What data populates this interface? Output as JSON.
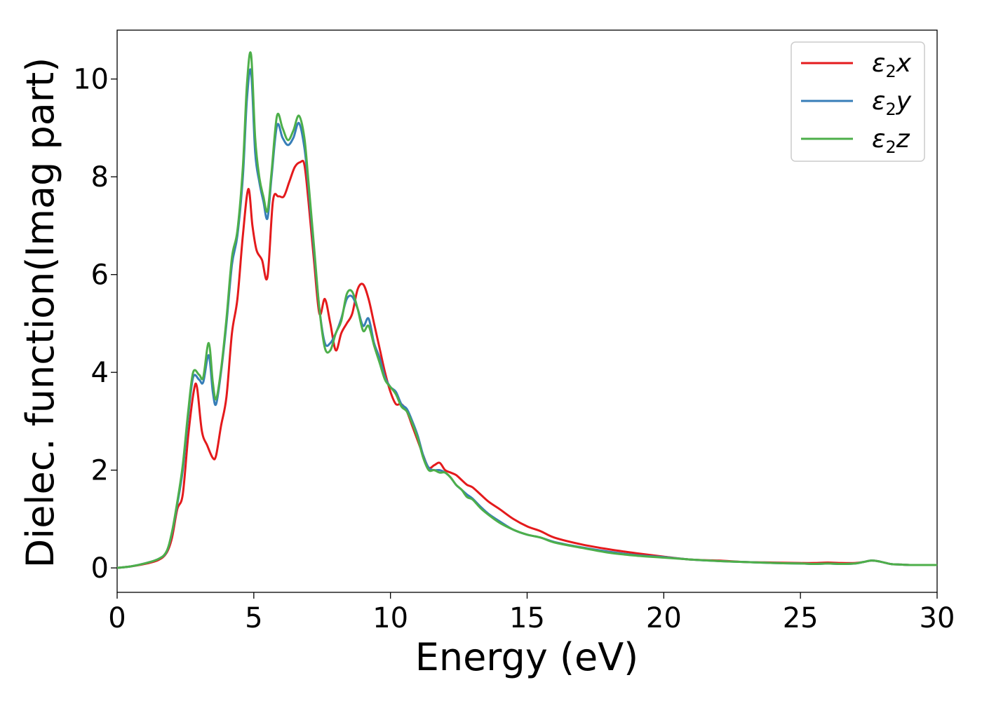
{
  "chart_data": {
    "type": "line",
    "title": "",
    "xlabel": "Energy (eV)",
    "ylabel": "Dielec. function(Imag part)",
    "xlim": [
      0,
      30
    ],
    "ylim": [
      -0.5,
      11.0
    ],
    "xticks": [
      0,
      5,
      10,
      15,
      20,
      25,
      30
    ],
    "yticks": [
      0,
      2,
      4,
      6,
      8,
      10
    ],
    "xtick_labels": [
      "0",
      "5",
      "10",
      "15",
      "20",
      "25",
      "30"
    ],
    "ytick_labels": [
      "0",
      "2",
      "4",
      "6",
      "8",
      "10"
    ],
    "grid": false,
    "legend_position": "top-right",
    "series": [
      {
        "name": "ε₂x",
        "name_base": "ε",
        "name_sub": "2",
        "name_var": "x",
        "color": "#e41a1c",
        "x": [
          0,
          0.5,
          1.0,
          1.5,
          1.8,
          2.0,
          2.2,
          2.4,
          2.6,
          2.8,
          2.92,
          3.1,
          3.3,
          3.5,
          3.62,
          3.8,
          4.0,
          4.2,
          4.4,
          4.6,
          4.8,
          4.95,
          5.1,
          5.3,
          5.5,
          5.7,
          5.9,
          6.1,
          6.3,
          6.5,
          6.7,
          6.85,
          7.0,
          7.2,
          7.4,
          7.6,
          7.8,
          8.0,
          8.2,
          8.4,
          8.6,
          8.8,
          9.0,
          9.2,
          9.4,
          9.6,
          9.8,
          10.0,
          10.2,
          10.4,
          10.6,
          10.8,
          11.0,
          11.2,
          11.4,
          11.6,
          11.8,
          12.0,
          12.2,
          12.4,
          12.6,
          12.8,
          13.0,
          13.3,
          13.6,
          14.0,
          14.5,
          15.0,
          15.5,
          16.0,
          17.0,
          18.0,
          19.0,
          20.0,
          21.0,
          22.0,
          23.0,
          24.0,
          25.0,
          25.5,
          26.0,
          26.5,
          27.0,
          27.3,
          27.6,
          27.9,
          28.3,
          28.6,
          29.0,
          29.5,
          30.0
        ],
        "y": [
          0,
          0.03,
          0.08,
          0.16,
          0.3,
          0.6,
          1.2,
          1.5,
          2.7,
          3.6,
          3.7,
          2.8,
          2.5,
          2.25,
          2.3,
          2.9,
          3.5,
          4.8,
          5.5,
          6.8,
          7.75,
          7.0,
          6.5,
          6.3,
          5.95,
          7.5,
          7.6,
          7.6,
          7.9,
          8.2,
          8.3,
          8.25,
          7.5,
          6.3,
          5.2,
          5.5,
          5.0,
          4.45,
          4.8,
          5.0,
          5.2,
          5.7,
          5.8,
          5.5,
          5.0,
          4.5,
          4.0,
          3.6,
          3.35,
          3.35,
          3.2,
          2.9,
          2.6,
          2.3,
          2.05,
          2.1,
          2.15,
          2.0,
          1.95,
          1.9,
          1.8,
          1.7,
          1.65,
          1.5,
          1.35,
          1.2,
          1.0,
          0.85,
          0.75,
          0.62,
          0.48,
          0.38,
          0.3,
          0.23,
          0.17,
          0.15,
          0.12,
          0.11,
          0.1,
          0.1,
          0.11,
          0.1,
          0.1,
          0.12,
          0.15,
          0.13,
          0.08,
          0.07,
          0.06,
          0.06,
          0.06
        ]
      },
      {
        "name": "ε₂y",
        "name_base": "ε",
        "name_sub": "2",
        "name_var": "y",
        "color": "#377eb8",
        "x": [
          0,
          0.5,
          1.0,
          1.5,
          1.8,
          2.0,
          2.2,
          2.4,
          2.6,
          2.78,
          3.0,
          3.15,
          3.35,
          3.5,
          3.62,
          3.8,
          4.0,
          4.2,
          4.4,
          4.6,
          4.75,
          4.9,
          5.05,
          5.2,
          5.35,
          5.5,
          5.65,
          5.85,
          6.05,
          6.25,
          6.45,
          6.65,
          6.85,
          7.0,
          7.2,
          7.4,
          7.6,
          7.8,
          8.0,
          8.2,
          8.4,
          8.6,
          8.8,
          9.0,
          9.2,
          9.4,
          9.6,
          9.8,
          10.0,
          10.2,
          10.4,
          10.6,
          10.8,
          11.0,
          11.2,
          11.4,
          11.6,
          11.8,
          12.0,
          12.2,
          12.4,
          12.6,
          12.8,
          13.0,
          13.3,
          13.6,
          14.0,
          14.5,
          15.0,
          15.5,
          16.0,
          17.0,
          18.0,
          19.0,
          20.0,
          21.0,
          22.0,
          23.0,
          24.0,
          25.0,
          25.5,
          26.0,
          26.5,
          27.0,
          27.3,
          27.6,
          27.9,
          28.3,
          28.6,
          29.0,
          29.5,
          30.0
        ],
        "y": [
          0,
          0.03,
          0.09,
          0.18,
          0.32,
          0.7,
          1.3,
          2.0,
          3.1,
          3.9,
          3.85,
          3.8,
          4.35,
          3.6,
          3.35,
          4.0,
          5.0,
          6.2,
          6.8,
          8.0,
          9.6,
          10.15,
          8.5,
          7.9,
          7.5,
          7.15,
          8.0,
          9.05,
          8.8,
          8.65,
          8.8,
          9.1,
          8.6,
          7.8,
          6.5,
          5.3,
          4.6,
          4.6,
          4.8,
          5.1,
          5.5,
          5.55,
          5.3,
          4.95,
          5.1,
          4.6,
          4.3,
          3.9,
          3.7,
          3.6,
          3.35,
          3.25,
          3.0,
          2.7,
          2.3,
          2.05,
          2.0,
          2.0,
          1.95,
          1.85,
          1.7,
          1.6,
          1.5,
          1.42,
          1.25,
          1.1,
          0.95,
          0.78,
          0.68,
          0.62,
          0.53,
          0.42,
          0.33,
          0.26,
          0.22,
          0.17,
          0.14,
          0.12,
          0.1,
          0.09,
          0.08,
          0.09,
          0.08,
          0.09,
          0.12,
          0.15,
          0.13,
          0.08,
          0.07,
          0.06,
          0.06,
          0.06
        ]
      },
      {
        "name": "ε₂z",
        "name_base": "ε",
        "name_sub": "2",
        "name_var": "z",
        "color": "#4daf4a",
        "x": [
          0,
          0.5,
          1.0,
          1.5,
          1.8,
          2.0,
          2.2,
          2.4,
          2.6,
          2.78,
          3.0,
          3.15,
          3.35,
          3.5,
          3.62,
          3.8,
          4.0,
          4.2,
          4.4,
          4.6,
          4.75,
          4.9,
          5.05,
          5.2,
          5.35,
          5.5,
          5.65,
          5.85,
          6.05,
          6.25,
          6.45,
          6.65,
          6.85,
          7.0,
          7.2,
          7.4,
          7.6,
          7.8,
          8.0,
          8.2,
          8.4,
          8.6,
          8.8,
          9.0,
          9.2,
          9.4,
          9.6,
          9.8,
          10.0,
          10.2,
          10.4,
          10.6,
          10.8,
          11.0,
          11.2,
          11.4,
          11.6,
          11.8,
          12.0,
          12.2,
          12.4,
          12.6,
          12.8,
          13.0,
          13.3,
          13.6,
          14.0,
          14.5,
          15.0,
          15.5,
          16.0,
          17.0,
          18.0,
          19.0,
          20.0,
          21.0,
          22.0,
          23.0,
          24.0,
          25.0,
          25.5,
          26.0,
          26.5,
          27.0,
          27.3,
          27.6,
          27.9,
          28.3,
          28.6,
          29.0,
          29.5,
          30.0
        ],
        "y": [
          0,
          0.03,
          0.09,
          0.18,
          0.33,
          0.72,
          1.35,
          2.1,
          3.2,
          4.0,
          3.95,
          3.9,
          4.6,
          3.8,
          3.45,
          4.05,
          5.1,
          6.35,
          6.9,
          8.2,
          9.9,
          10.5,
          8.8,
          8.0,
          7.6,
          7.3,
          8.1,
          9.25,
          9.0,
          8.75,
          8.95,
          9.25,
          8.8,
          7.9,
          6.6,
          5.3,
          4.5,
          4.45,
          4.8,
          5.05,
          5.6,
          5.65,
          5.3,
          4.85,
          4.95,
          4.55,
          4.2,
          3.85,
          3.7,
          3.55,
          3.3,
          3.2,
          2.95,
          2.65,
          2.25,
          2.0,
          2.0,
          1.95,
          1.95,
          1.85,
          1.7,
          1.6,
          1.45,
          1.4,
          1.22,
          1.08,
          0.92,
          0.78,
          0.68,
          0.62,
          0.52,
          0.41,
          0.31,
          0.25,
          0.21,
          0.17,
          0.14,
          0.12,
          0.1,
          0.09,
          0.08,
          0.09,
          0.08,
          0.09,
          0.12,
          0.15,
          0.13,
          0.08,
          0.07,
          0.06,
          0.06,
          0.06
        ]
      }
    ]
  }
}
